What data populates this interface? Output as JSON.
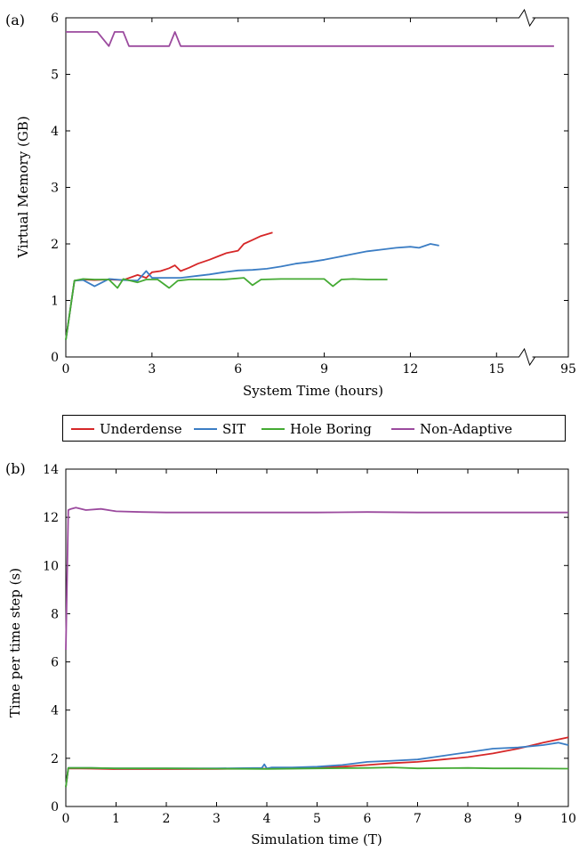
{
  "colors": {
    "underdense": "#d62728",
    "sit": "#3b7dc4",
    "hole_boring": "#44aa33",
    "non_adaptive": "#9b4a9e"
  },
  "legend": {
    "entries": [
      {
        "key": "underdense",
        "label": "Underdense"
      },
      {
        "key": "sit",
        "label": "SIT"
      },
      {
        "key": "hole_boring",
        "label": "Hole Boring"
      },
      {
        "key": "non_adaptive",
        "label": "Non-Adaptive"
      }
    ]
  },
  "chart_data": [
    {
      "panel_label": "(a)",
      "type": "line",
      "xlabel": "System Time (hours)",
      "ylabel": "Virtual Memory (GB)",
      "xlim": [
        0,
        17.5
      ],
      "ylim": [
        0,
        6
      ],
      "axis_break": "between 15 and 95 on x axis",
      "x_ticks": [
        "0",
        "3",
        "6",
        "9",
        "12",
        "15",
        "95"
      ],
      "y_ticks": [
        "0",
        "1",
        "2",
        "3",
        "4",
        "5",
        "6"
      ],
      "series": [
        {
          "key": "underdense",
          "name": "Underdense",
          "x": [
            0,
            0.3,
            0.6,
            1.0,
            1.5,
            2.0,
            2.5,
            2.8,
            3.0,
            3.3,
            3.6,
            3.8,
            4.0,
            4.3,
            4.6,
            5.0,
            5.3,
            5.6,
            6.0,
            6.2,
            6.5,
            6.8,
            7.2
          ],
          "y": [
            0.3,
            1.35,
            1.37,
            1.36,
            1.37,
            1.36,
            1.45,
            1.4,
            1.5,
            1.52,
            1.57,
            1.62,
            1.52,
            1.58,
            1.65,
            1.72,
            1.78,
            1.84,
            1.88,
            2.0,
            2.07,
            2.14,
            2.2
          ]
        },
        {
          "key": "sit",
          "name": "SIT",
          "x": [
            0,
            0.3,
            0.6,
            1.0,
            1.5,
            2.0,
            2.5,
            2.8,
            3.0,
            3.5,
            4.0,
            4.5,
            5.0,
            5.5,
            6.0,
            6.5,
            7.0,
            7.5,
            8.0,
            8.5,
            9.0,
            9.5,
            10.0,
            10.5,
            11.0,
            11.5,
            12.0,
            12.3,
            12.7,
            13.0
          ],
          "y": [
            0.3,
            1.35,
            1.36,
            1.25,
            1.38,
            1.36,
            1.35,
            1.52,
            1.4,
            1.4,
            1.4,
            1.43,
            1.46,
            1.5,
            1.53,
            1.54,
            1.56,
            1.6,
            1.65,
            1.68,
            1.72,
            1.77,
            1.82,
            1.87,
            1.9,
            1.93,
            1.95,
            1.93,
            2.0,
            1.97
          ]
        },
        {
          "key": "hole_boring",
          "name": "Hole Boring",
          "x": [
            0,
            0.3,
            0.6,
            1.0,
            1.5,
            1.8,
            2.0,
            2.5,
            2.8,
            3.2,
            3.6,
            3.9,
            4.3,
            4.8,
            5.5,
            6.2,
            6.5,
            6.8,
            7.5,
            8.2,
            9.0,
            9.3,
            9.6,
            10.0,
            10.5,
            11.2
          ],
          "y": [
            0.3,
            1.35,
            1.38,
            1.37,
            1.37,
            1.22,
            1.38,
            1.32,
            1.37,
            1.37,
            1.22,
            1.35,
            1.37,
            1.37,
            1.37,
            1.4,
            1.27,
            1.37,
            1.38,
            1.38,
            1.38,
            1.25,
            1.37,
            1.38,
            1.37,
            1.37
          ]
        },
        {
          "key": "non_adaptive",
          "name": "Non-Adaptive",
          "x": [
            0,
            1.1,
            1.5,
            1.7,
            2.0,
            2.2,
            2.6,
            3.3,
            3.6,
            3.8,
            4.0,
            4.3,
            5.0,
            8.0,
            12.0,
            16.0,
            17.0
          ],
          "y": [
            5.75,
            5.75,
            5.5,
            5.75,
            5.75,
            5.5,
            5.5,
            5.5,
            5.5,
            5.75,
            5.5,
            5.5,
            5.5,
            5.5,
            5.5,
            5.5,
            5.5
          ]
        }
      ]
    },
    {
      "panel_label": "(b)",
      "type": "line",
      "xlabel": "Simulation time (T)",
      "ylabel": "Time per time step (s)",
      "xlim": [
        0,
        10
      ],
      "ylim": [
        0,
        14
      ],
      "x_ticks": [
        "0",
        "1",
        "2",
        "3",
        "4",
        "5",
        "6",
        "7",
        "8",
        "9",
        "10"
      ],
      "y_ticks": [
        "0",
        "2",
        "4",
        "6",
        "8",
        "10",
        "12",
        "14"
      ],
      "series": [
        {
          "key": "underdense",
          "name": "Underdense",
          "x": [
            0,
            0.05,
            0.5,
            1,
            2,
            3,
            4,
            4.5,
            5,
            5.5,
            6,
            6.5,
            7,
            7.5,
            8,
            8.5,
            9,
            9.5,
            10
          ],
          "y": [
            0.8,
            1.58,
            1.57,
            1.55,
            1.55,
            1.56,
            1.57,
            1.58,
            1.6,
            1.65,
            1.72,
            1.8,
            1.85,
            1.95,
            2.05,
            2.2,
            2.4,
            2.65,
            2.87
          ]
        },
        {
          "key": "sit",
          "name": "SIT",
          "x": [
            0,
            0.05,
            0.5,
            1,
            2,
            3,
            3.9,
            3.95,
            4.0,
            4.1,
            4.5,
            5,
            5.5,
            6,
            6.5,
            7,
            7.5,
            8,
            8.5,
            9,
            9.5,
            9.8,
            10
          ],
          "y": [
            0.8,
            1.6,
            1.6,
            1.58,
            1.58,
            1.58,
            1.6,
            1.75,
            1.58,
            1.62,
            1.62,
            1.65,
            1.72,
            1.85,
            1.9,
            1.95,
            2.1,
            2.25,
            2.4,
            2.45,
            2.55,
            2.65,
            2.55
          ]
        },
        {
          "key": "hole_boring",
          "name": "Hole Boring",
          "x": [
            0,
            0.05,
            0.5,
            1,
            2,
            3,
            4,
            5,
            6,
            6.5,
            7,
            8,
            8.5,
            9,
            10
          ],
          "y": [
            0.8,
            1.6,
            1.6,
            1.58,
            1.58,
            1.57,
            1.56,
            1.58,
            1.6,
            1.62,
            1.58,
            1.6,
            1.58,
            1.58,
            1.57
          ]
        },
        {
          "key": "non_adaptive",
          "name": "Non-Adaptive",
          "x": [
            0,
            0.05,
            0.1,
            0.2,
            0.4,
            0.7,
            1.0,
            1.5,
            2.0,
            3.0,
            4.0,
            5.0,
            6.0,
            7.0,
            8.0,
            9.0,
            10.0
          ],
          "y": [
            6.5,
            12.3,
            12.35,
            12.4,
            12.3,
            12.35,
            12.25,
            12.22,
            12.2,
            12.2,
            12.2,
            12.2,
            12.22,
            12.2,
            12.2,
            12.2,
            12.2
          ]
        }
      ]
    }
  ]
}
